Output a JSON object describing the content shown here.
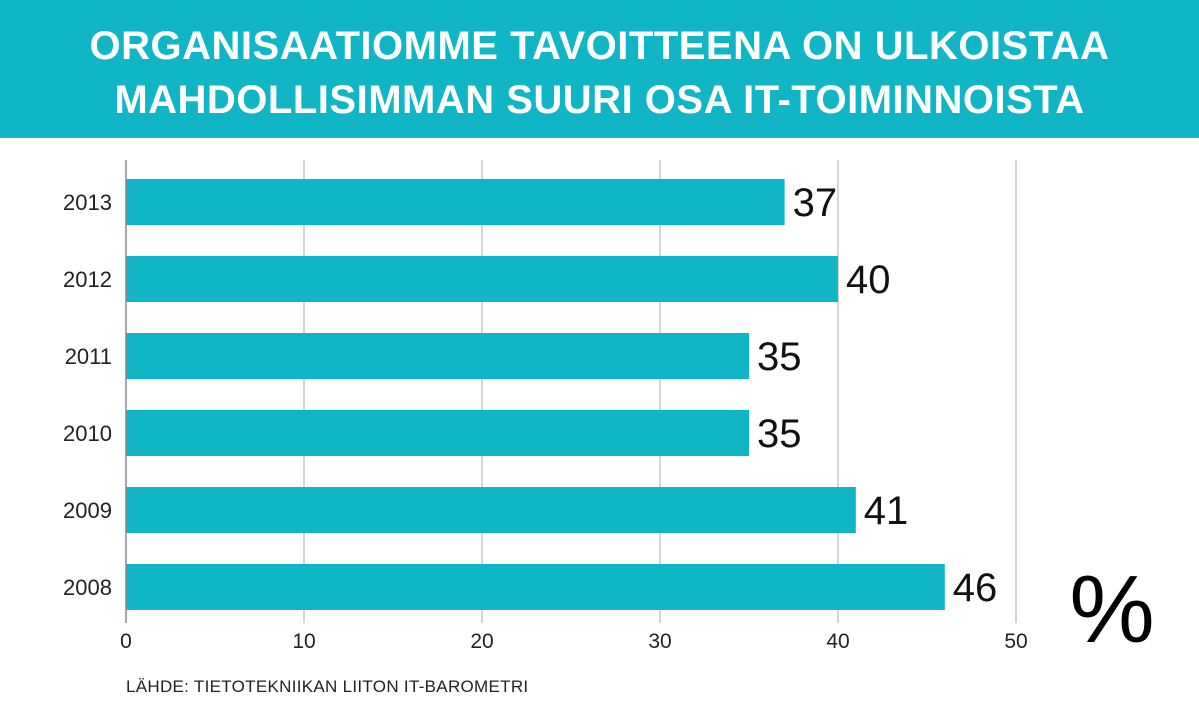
{
  "header": {
    "title_line1": "ORGANISAATIOMME TAVOITTEENA ON ULKOISTAA",
    "title_line2": "MAHDOLLISIMMAN SUURI OSA IT-TOIMINNOISTA"
  },
  "colors": {
    "accent": "#10b6c6",
    "grid": "#c8c8c8",
    "text": "#222222"
  },
  "source": "LÄHDE: TIETOTEKNIIKAN LIITON IT-BAROMETRI",
  "chart_data": {
    "type": "bar",
    "orientation": "horizontal",
    "title": "ORGANISAATIOMME TAVOITTEENA ON ULKOISTAA MAHDOLLISIMMAN SUURI OSA IT-TOIMINNOISTA",
    "categories": [
      "2013",
      "2012",
      "2011",
      "2010",
      "2009",
      "2008"
    ],
    "values": [
      37,
      40,
      35,
      35,
      41,
      46
    ],
    "value_labels": [
      "37",
      "40",
      "35",
      "35",
      "41",
      "46"
    ],
    "xlim": [
      0,
      50
    ],
    "xticks": [
      0,
      10,
      20,
      30,
      40,
      50
    ],
    "xtick_labels": [
      "0",
      "10",
      "20",
      "30",
      "40",
      "50"
    ],
    "unit": "%",
    "xlabel": "",
    "ylabel": "",
    "grid": true
  }
}
